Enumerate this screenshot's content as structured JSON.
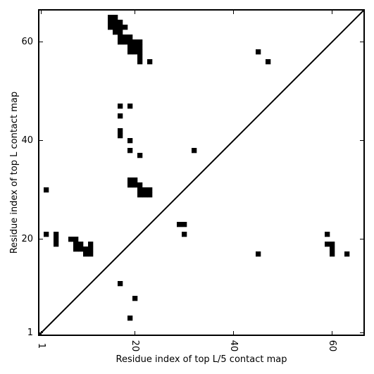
{
  "chart_data": {
    "type": "heatmap",
    "xlabel": "Residue index of top L/5 contact map",
    "ylabel": "Residue index of top L contact map",
    "xlim": [
      0.5,
      66.5
    ],
    "ylim": [
      0.5,
      66.5
    ],
    "x_ticks": [
      {
        "value": 1,
        "label": "1"
      },
      {
        "value": 20,
        "label": "20"
      },
      {
        "value": 40,
        "label": "40"
      },
      {
        "value": 60,
        "label": "60"
      }
    ],
    "y_ticks": [
      {
        "value": 1,
        "label": "1"
      },
      {
        "value": 20,
        "label": "20"
      },
      {
        "value": 40,
        "label": "40"
      },
      {
        "value": 60,
        "label": "60"
      }
    ],
    "diagonal": true,
    "grid": false,
    "cell_color": "#000000",
    "cells": [
      [
        15,
        65
      ],
      [
        16,
        65
      ],
      [
        15,
        64
      ],
      [
        16,
        64
      ],
      [
        17,
        64
      ],
      [
        15,
        63
      ],
      [
        16,
        63
      ],
      [
        17,
        63
      ],
      [
        18,
        63
      ],
      [
        16,
        62
      ],
      [
        17,
        62
      ],
      [
        17,
        61
      ],
      [
        18,
        61
      ],
      [
        19,
        61
      ],
      [
        17,
        60
      ],
      [
        18,
        60
      ],
      [
        19,
        60
      ],
      [
        20,
        60
      ],
      [
        21,
        60
      ],
      [
        19,
        59
      ],
      [
        20,
        59
      ],
      [
        21,
        59
      ],
      [
        19,
        58
      ],
      [
        20,
        58
      ],
      [
        21,
        58
      ],
      [
        21,
        57
      ],
      [
        21,
        56
      ],
      [
        23,
        56
      ],
      [
        17,
        47
      ],
      [
        19,
        47
      ],
      [
        17,
        45
      ],
      [
        17,
        42
      ],
      [
        17,
        41
      ],
      [
        19,
        40
      ],
      [
        19,
        38
      ],
      [
        21,
        37
      ],
      [
        19,
        32
      ],
      [
        20,
        32
      ],
      [
        19,
        31
      ],
      [
        20,
        31
      ],
      [
        21,
        31
      ],
      [
        21,
        30
      ],
      [
        22,
        30
      ],
      [
        23,
        30
      ],
      [
        21,
        29
      ],
      [
        22,
        29
      ],
      [
        23,
        29
      ],
      [
        2,
        30
      ],
      [
        32,
        38
      ],
      [
        45,
        58
      ],
      [
        47,
        56
      ],
      [
        29,
        23
      ],
      [
        30,
        23
      ],
      [
        30,
        21
      ],
      [
        2,
        21
      ],
      [
        4,
        21
      ],
      [
        4,
        20
      ],
      [
        4,
        19
      ],
      [
        7,
        20
      ],
      [
        8,
        20
      ],
      [
        8,
        19
      ],
      [
        9,
        19
      ],
      [
        11,
        19
      ],
      [
        8,
        18
      ],
      [
        9,
        18
      ],
      [
        10,
        18
      ],
      [
        11,
        18
      ],
      [
        10,
        17
      ],
      [
        11,
        17
      ],
      [
        59,
        21
      ],
      [
        59,
        19
      ],
      [
        60,
        19
      ],
      [
        60,
        18
      ],
      [
        60,
        17
      ],
      [
        63,
        17
      ],
      [
        45,
        17
      ],
      [
        17,
        11
      ],
      [
        20,
        8
      ],
      [
        19,
        4
      ]
    ]
  }
}
